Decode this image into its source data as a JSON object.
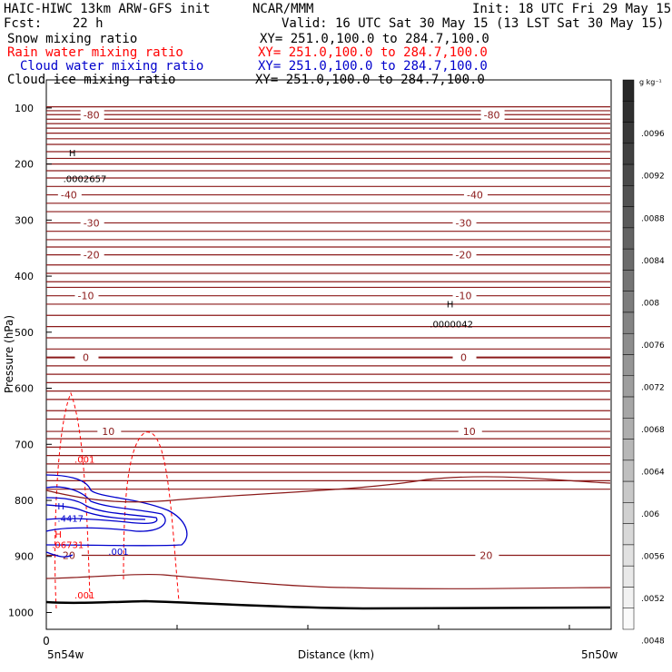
{
  "header": {
    "line1_left": "HAIC-HIWC 13km ARW-GFS init",
    "line1_mid": "NCAR/MMM",
    "line1_right": "Init: 18 UTC Fri 29 May 15",
    "line2_left": "Fcst:    22 h",
    "line2_right": "Valid: 16 UTC Sat 30 May 15 (13 LST Sat 30 May 15)",
    "fields": [
      {
        "label": "Snow mixing ratio",
        "xy": "XY= 251.0,100.0 to 284.7,100.0",
        "color": "#000000"
      },
      {
        "label": "Rain water mixing ratio",
        "xy": "XY= 251.0,100.0 to 284.7,100.0",
        "color": "#ff0000"
      },
      {
        "label": "Cloud water mixing ratio",
        "xy": "XY= 251.0,100.0 to 284.7,100.0",
        "color": "#0000cc"
      },
      {
        "label": "Cloud ice mixing ratio",
        "xy": "XY= 251.0,100.0 to 284.7,100.0",
        "color": "#000000"
      }
    ]
  },
  "chart_data": {
    "type": "cross-section contour",
    "ylabel": "Pressure (hPa)",
    "xlabel": "Distance (km)",
    "x_tick_labels": [
      "0"
    ],
    "x_endpoints": [
      "5n54w",
      "5n50w"
    ],
    "y_ticks": [
      100,
      200,
      300,
      400,
      500,
      600,
      700,
      800,
      900,
      1000
    ],
    "ylim": [
      50,
      1030
    ],
    "temperature_contours": [
      {
        "value": -80,
        "label": "-80",
        "pressure": 112,
        "label_positions": [
          0.08,
          0.79
        ]
      },
      {
        "value": -40,
        "label": "-40",
        "pressure": 255,
        "label_positions": [
          0.04,
          0.76
        ]
      },
      {
        "value": -30,
        "label": "-30",
        "pressure": 305,
        "label_positions": [
          0.08,
          0.74
        ]
      },
      {
        "value": -20,
        "label": "-20",
        "pressure": 362,
        "label_positions": [
          0.08,
          0.74
        ]
      },
      {
        "value": -10,
        "label": "-10",
        "pressure": 435,
        "label_positions": [
          0.07,
          0.74
        ]
      },
      {
        "value": 0,
        "label": "0",
        "pressure": 545,
        "label_positions": [
          0.07,
          0.74
        ]
      },
      {
        "value": 10,
        "label": "10",
        "pressure": 677,
        "label_positions": [
          0.11,
          0.75
        ]
      },
      {
        "value": 20,
        "label": "20",
        "pressure": 898,
        "label_positions": [
          0.04,
          0.78
        ]
      }
    ],
    "labels": [
      {
        "text": "H",
        "color": "#000000",
        "x": 0.04,
        "p": 186
      },
      {
        "text": ".0002657",
        "color": "#000000",
        "x": 0.03,
        "p": 232
      },
      {
        "text": "H",
        "color": "#000000",
        "x": 0.71,
        "p": 456
      },
      {
        "text": ".0000042",
        "color": "#000000",
        "x": 0.68,
        "p": 491
      },
      {
        "text": "H",
        "color": "#0000cc",
        "x": 0.02,
        "p": 816
      },
      {
        "text": ".4417",
        "color": "#0000cc",
        "x": 0.02,
        "p": 838
      },
      {
        "text": ".001",
        "color": "#0000cc",
        "x": 0.11,
        "p": 897
      },
      {
        "text": "H",
        "color": "#ff0000",
        "x": 0.015,
        "p": 866
      },
      {
        "text": ".06731",
        "color": "#ff0000",
        "x": 0.01,
        "p": 885
      },
      {
        "text": ".001",
        "color": "#ff0000",
        "x": 0.05,
        "p": 733
      },
      {
        "text": ".001",
        "color": "#ff0000",
        "x": 0.05,
        "p": 975
      }
    ],
    "colorbar": {
      "unit": "g kg⁻¹",
      "labels": [
        ".0096",
        ".0092",
        ".0088",
        ".0084",
        ".008",
        ".0076",
        ".0072",
        ".0068",
        ".0064",
        ".006",
        ".0056",
        ".0052",
        ".0048"
      ]
    }
  }
}
